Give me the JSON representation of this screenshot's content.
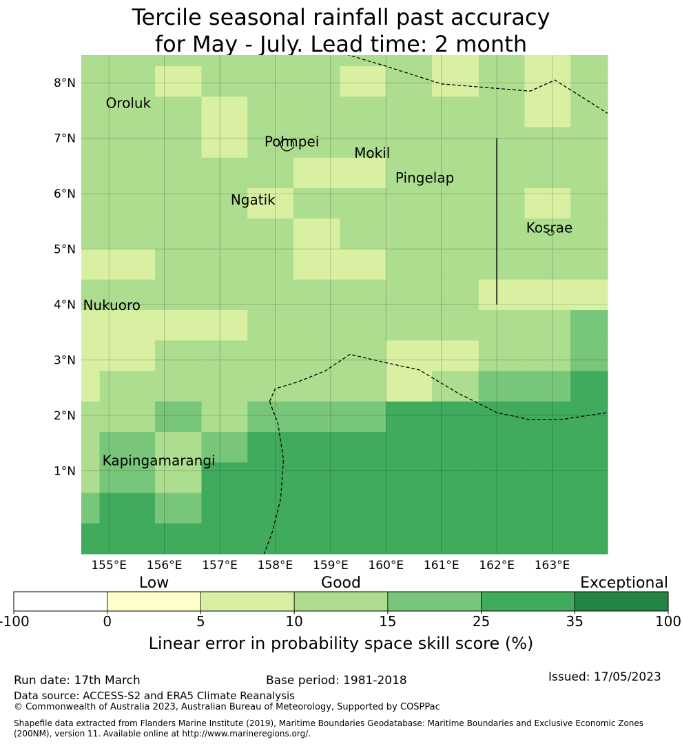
{
  "title": {
    "line1": "Tercile seasonal rainfall past accuracy",
    "line2": "for May - July. Lead time: 2 month"
  },
  "map": {
    "lon_range": [
      154.5,
      164.0
    ],
    "lat_range": [
      -0.5,
      8.5
    ],
    "lon_ticks": [
      155,
      156,
      157,
      158,
      159,
      160,
      161,
      162,
      163
    ],
    "lon_tick_labels": [
      "155°E",
      "156°E",
      "157°E",
      "158°E",
      "159°E",
      "160°E",
      "161°E",
      "162°E",
      "163°E"
    ],
    "lat_ticks": [
      1,
      2,
      3,
      4,
      5,
      6,
      7,
      8
    ],
    "lat_tick_labels": [
      "1°N",
      "2°N",
      "3°N",
      "4°N",
      "5°N",
      "6°N",
      "7°N",
      "8°N"
    ],
    "grid_lines": true,
    "cell_edges_lon": [
      154.5,
      154.83,
      155.83,
      156.67,
      157.5,
      158.33,
      159.17,
      160.0,
      160.83,
      161.67,
      162.5,
      163.33,
      164.0
    ],
    "cell_edges_lat": [
      8.5,
      8.3,
      7.75,
      7.2,
      6.65,
      6.1,
      5.55,
      5.0,
      4.45,
      3.9,
      3.35,
      2.8,
      2.25,
      1.7,
      1.15,
      0.6,
      0.05,
      -0.5
    ],
    "skill_class_grid": [
      [
        3,
        3,
        3,
        3,
        3,
        3,
        3,
        3,
        2,
        3,
        2,
        3
      ],
      [
        3,
        3,
        2,
        3,
        3,
        3,
        2,
        3,
        2,
        3,
        2,
        3
      ],
      [
        3,
        3,
        3,
        2,
        3,
        3,
        3,
        3,
        3,
        3,
        2,
        3
      ],
      [
        3,
        3,
        3,
        2,
        3,
        3,
        3,
        3,
        3,
        3,
        3,
        3
      ],
      [
        3,
        3,
        3,
        3,
        3,
        2,
        2,
        3,
        3,
        3,
        3,
        3
      ],
      [
        3,
        3,
        3,
        3,
        2,
        3,
        3,
        3,
        3,
        3,
        2,
        3
      ],
      [
        3,
        3,
        3,
        3,
        3,
        2,
        3,
        3,
        3,
        3,
        3,
        3
      ],
      [
        2,
        2,
        3,
        3,
        3,
        2,
        2,
        3,
        3,
        3,
        3,
        3
      ],
      [
        3,
        3,
        3,
        3,
        3,
        3,
        3,
        3,
        3,
        2,
        2,
        2
      ],
      [
        2,
        2,
        2,
        2,
        3,
        3,
        3,
        3,
        3,
        3,
        3,
        4
      ],
      [
        2,
        2,
        3,
        3,
        3,
        3,
        3,
        2,
        2,
        3,
        3,
        4
      ],
      [
        2,
        3,
        3,
        3,
        3,
        3,
        3,
        2,
        3,
        4,
        4,
        5
      ],
      [
        3,
        3,
        4,
        3,
        4,
        4,
        4,
        5,
        5,
        5,
        5,
        5
      ],
      [
        3,
        4,
        3,
        4,
        5,
        5,
        5,
        5,
        5,
        5,
        5,
        5
      ],
      [
        3,
        4,
        3,
        5,
        5,
        5,
        5,
        5,
        5,
        5,
        5,
        5
      ],
      [
        4,
        5,
        4,
        5,
        5,
        5,
        5,
        5,
        5,
        5,
        5,
        5
      ],
      [
        5,
        5,
        5,
        5,
        5,
        5,
        5,
        5,
        5,
        5,
        5,
        5
      ]
    ],
    "places": [
      {
        "name": "Oroluk",
        "lon": 155.35,
        "lat": 7.55
      },
      {
        "name": "Pohnpei",
        "lon": 158.3,
        "lat": 6.85
      },
      {
        "name": "Mokil",
        "lon": 159.75,
        "lat": 6.65
      },
      {
        "name": "Pingelap",
        "lon": 160.7,
        "lat": 6.2
      },
      {
        "name": "Ngatik",
        "lon": 157.6,
        "lat": 5.8
      },
      {
        "name": "Kosrae",
        "lon": 162.95,
        "lat": 5.3
      },
      {
        "name": "Nukuoro",
        "lon": 155.05,
        "lat": 3.9
      },
      {
        "name": "Kapingamarangi",
        "lon": 155.9,
        "lat": 1.1
      }
    ],
    "boundary_lines": [
      [
        [
          159.0,
          8.6
        ],
        [
          160.0,
          8.3
        ],
        [
          161.0,
          7.98
        ],
        [
          162.0,
          7.9
        ],
        [
          162.6,
          7.85
        ],
        [
          163.05,
          8.05
        ],
        [
          164.0,
          7.45
        ]
      ],
      [
        [
          157.9,
          2.25
        ],
        [
          158.0,
          2.48
        ],
        [
          158.4,
          2.6
        ],
        [
          158.9,
          2.8
        ],
        [
          159.35,
          3.1
        ],
        [
          160.0,
          2.95
        ],
        [
          160.6,
          2.82
        ],
        [
          161.3,
          2.4
        ],
        [
          162.0,
          2.05
        ],
        [
          162.6,
          1.92
        ],
        [
          163.2,
          1.93
        ],
        [
          164.0,
          2.05
        ]
      ],
      [
        [
          157.9,
          2.25
        ],
        [
          158.05,
          1.85
        ],
        [
          158.15,
          1.2
        ],
        [
          158.1,
          0.5
        ],
        [
          157.95,
          -0.1
        ],
        [
          157.8,
          -0.5
        ]
      ]
    ],
    "solid_line": [
      [
        162.0,
        7.0
      ],
      [
        162.0,
        4.0
      ]
    ],
    "coast_color": "#000000"
  },
  "colorbar": {
    "category_labels": [
      "Low",
      "Good",
      "Exceptional"
    ],
    "tick_labels": [
      "-100",
      "0",
      "5",
      "10",
      "15",
      "25",
      "35",
      "100"
    ],
    "colors": [
      "#ffffff",
      "#ffffcc",
      "#d9f0a3",
      "#addd8e",
      "#78c679",
      "#41ab5d",
      "#238443"
    ],
    "title": "Linear error in probability space skill score (%)"
  },
  "footer": {
    "run_date": "Run date: 17th March",
    "base_period": "Base period: 1981-2018",
    "issued": "Issued: 17/05/2023",
    "data_source": "Data source: ACCESS-S2 and ERA5 Climate Reanalysis",
    "copyright": "© Commonwealth of Australia 2023, Australian Bureau of Meteorology, Supported by COSPPac",
    "shapefile_note": "Shapefile data extracted from Flanders Marine Institute (2019), Maritime Boundaries Geodatabase: Maritime Boundaries and Exclusive Economic Zones (200NM), version 11. Available online at http://www.marineregions.org/."
  }
}
